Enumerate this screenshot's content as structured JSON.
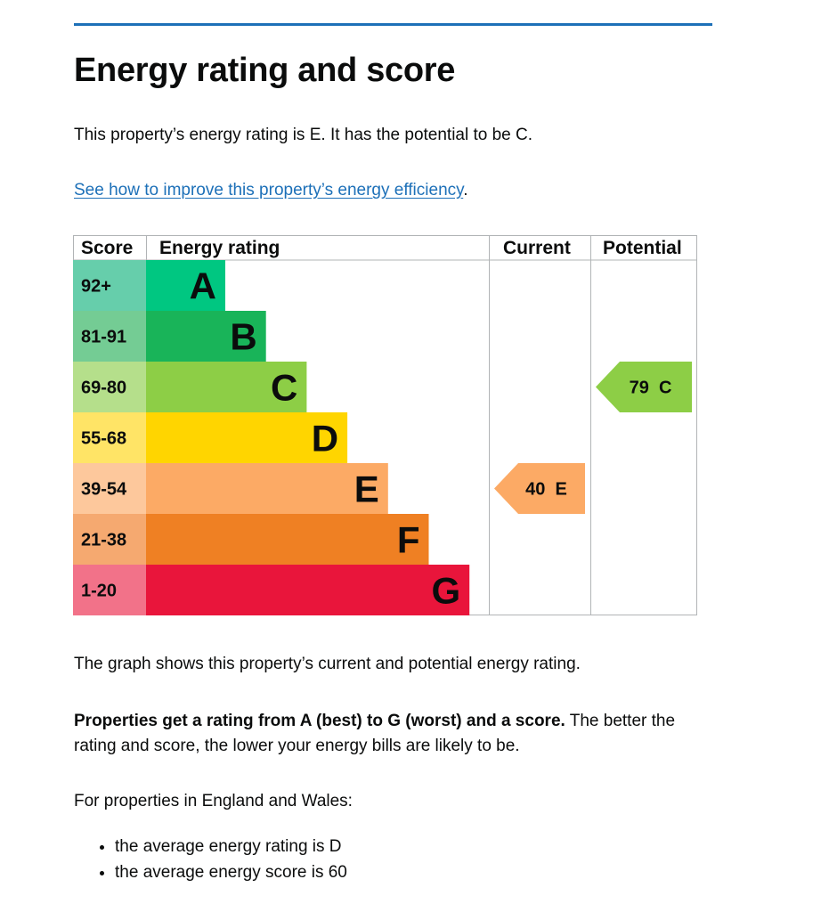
{
  "title": "Energy rating and score",
  "intro": "This property’s energy rating is E. It has the potential to be C.",
  "improve_link": {
    "text": "See how to improve this property’s energy efficiency",
    "suffix": "."
  },
  "chart_data": {
    "type": "table",
    "columns": {
      "score": "Score",
      "rating": "Energy rating",
      "current": "Current",
      "potential": "Potential"
    },
    "bands": [
      {
        "score": "92+",
        "letter": "A",
        "color": "#00c781",
        "score_bg": "#66ceab"
      },
      {
        "score": "81-91",
        "letter": "B",
        "color": "#19b459",
        "score_bg": "#74cc94"
      },
      {
        "score": "69-80",
        "letter": "C",
        "color": "#8dce46",
        "score_bg": "#b5df8b"
      },
      {
        "score": "55-68",
        "letter": "D",
        "color": "#ffd500",
        "score_bg": "#ffe466"
      },
      {
        "score": "39-54",
        "letter": "E",
        "color": "#fcaa65",
        "score_bg": "#fdc89c"
      },
      {
        "score": "21-38",
        "letter": "F",
        "color": "#ef8023",
        "score_bg": "#f5a970"
      },
      {
        "score": "1-20",
        "letter": "G",
        "color": "#e9153b",
        "score_bg": "#f27289"
      }
    ],
    "current": {
      "score": 40,
      "letter": "E",
      "label": "40  E"
    },
    "potential": {
      "score": 79,
      "letter": "C",
      "label": "79  C"
    }
  },
  "graph_caption": "The graph shows this property’s current and potential energy rating.",
  "rating_info": {
    "bold": "Properties get a rating from A (best) to G (worst) and a score.",
    "rest": " The better the rating and score, the lower your energy bills are likely to be."
  },
  "england_wales_label": "For properties in England and Wales:",
  "averages": [
    "the average energy rating is D",
    "the average energy score is 60"
  ]
}
